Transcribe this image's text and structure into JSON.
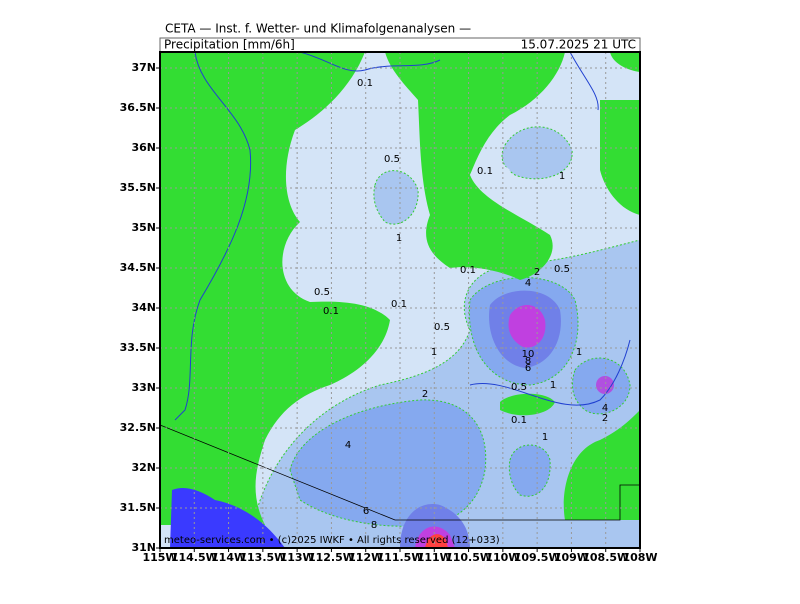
{
  "header": {
    "title": "CETA — Inst. f. Wetter- und Klimafolgenanalysen —",
    "variable": "Precipitation [mm/6h]",
    "valid_time": "15.07.2025 21 UTC"
  },
  "map": {
    "lonlim": [
      -115,
      -108
    ],
    "latlim": [
      31,
      37.2
    ],
    "lon_ticks": [
      {
        "value": -115,
        "label": "115W"
      },
      {
        "value": -114.5,
        "label": "114.5W"
      },
      {
        "value": -114,
        "label": "114W"
      },
      {
        "value": -113.5,
        "label": "113.5W"
      },
      {
        "value": -113,
        "label": "113W"
      },
      {
        "value": -112.5,
        "label": "112.5W"
      },
      {
        "value": -112,
        "label": "112W"
      },
      {
        "value": -111.5,
        "label": "111.5W"
      },
      {
        "value": -111,
        "label": "111W"
      },
      {
        "value": -110.5,
        "label": "110.5W"
      },
      {
        "value": -110,
        "label": "110W"
      },
      {
        "value": -109.5,
        "label": "109.5W"
      },
      {
        "value": -109,
        "label": "109W"
      },
      {
        "value": -108.5,
        "label": "108.5W"
      },
      {
        "value": -108,
        "label": "108W"
      }
    ],
    "lat_ticks": [
      {
        "value": 31,
        "label": "31N"
      },
      {
        "value": 31.5,
        "label": "31.5N"
      },
      {
        "value": 32,
        "label": "32N"
      },
      {
        "value": 32.5,
        "label": "32.5N"
      },
      {
        "value": 33,
        "label": "33N"
      },
      {
        "value": 33.5,
        "label": "33.5N"
      },
      {
        "value": 34,
        "label": "34N"
      },
      {
        "value": 34.5,
        "label": "34.5N"
      },
      {
        "value": 35,
        "label": "35N"
      },
      {
        "value": 35.5,
        "label": "35.5N"
      },
      {
        "value": 36,
        "label": "36N"
      },
      {
        "value": 36.5,
        "label": "36.5N"
      },
      {
        "value": 37,
        "label": "37N"
      }
    ],
    "contour_labels": [
      "0.1",
      "0.5",
      "0.1",
      "1",
      "1",
      "0.1",
      "2",
      "0.5",
      "4",
      "0.5",
      "0.1",
      "0.1",
      "0.5",
      "1",
      "10",
      "8",
      "6",
      "1",
      "0.5",
      "1",
      "2",
      "4",
      "2",
      "0.1",
      "1",
      "4",
      "6",
      "8"
    ],
    "footer": "meteo-services.com • (c)2025 IWKF • All rights reserved (12+033)"
  }
}
